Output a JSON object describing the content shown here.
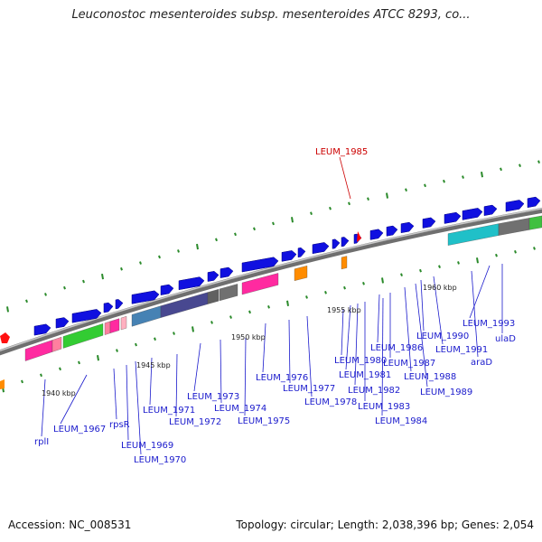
{
  "title": "Leuconostoc mesenteroides subsp. mesenteroides ATCC 8293, co...",
  "accession": "Accession: NC_008531",
  "topology": "Topology: circular; Length: 2,038,396 bp; Genes: 2,054",
  "colors": {
    "backbone": "#8a8a8a",
    "gene_forward": "#1010e0",
    "ticks": "#2a8a2a",
    "label": "#1a1acc",
    "highlight": "#cc0000"
  },
  "highlight_label": "LEUM_1985",
  "scale_labels": [
    "1940 kbp",
    "1945 kbp",
    "1950 kbp",
    "1955 kbp",
    "1960 kbp"
  ],
  "gene_labels": [
    "rplI",
    "LEUM_1967",
    "rpsR",
    "LEUM_1969",
    "LEUM_1970",
    "LEUM_1971",
    "LEUM_1972",
    "LEUM_1973",
    "LEUM_1974",
    "LEUM_1975",
    "LEUM_1976",
    "LEUM_1977",
    "LEUM_1978",
    "LEUM_1980",
    "LEUM_1981",
    "LEUM_1982",
    "LEUM_1983",
    "LEUM_1984",
    "LEUM_1986",
    "LEUM_1987",
    "LEUM_1988",
    "LEUM_1989",
    "LEUM_1990",
    "LEUM_1991",
    "araD",
    "LEUM_1993",
    "ulaD"
  ]
}
